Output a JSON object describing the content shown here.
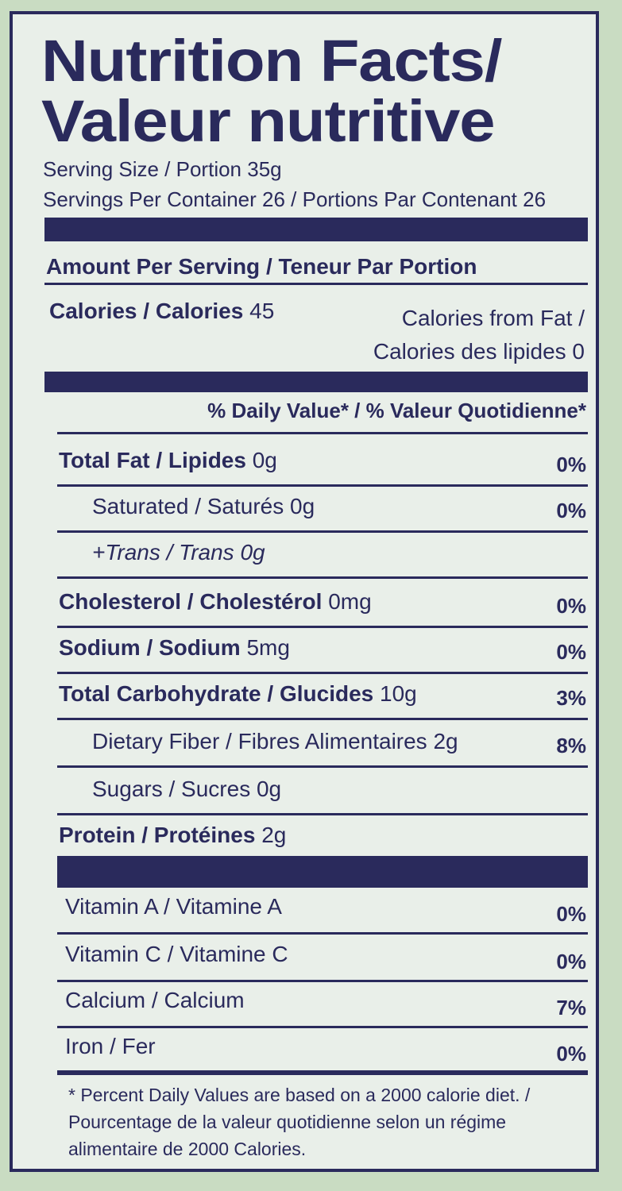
{
  "title_line1": "Nutrition Facts/",
  "title_line2": "Valeur nutritive",
  "serving_size": "Serving Size / Portion 35g",
  "servings_per_container": "Servings Per Container 26 / Portions Par Contenant 26",
  "amount_per_serving": "Amount Per Serving / Teneur Par Portion",
  "calories": {
    "label": "Calories / Calories",
    "value": "45"
  },
  "calories_from_fat": {
    "line1": "Calories from Fat /",
    "line2": "Calories des lipides 0"
  },
  "daily_value_header": "% Daily Value* / % Valeur Quotidienne*",
  "nutrients": [
    {
      "label": "Total Fat / Lipides",
      "amount": "0g",
      "pct": "0%",
      "bold": true,
      "indent": false
    },
    {
      "label": "Saturated / Saturés",
      "amount": "0g",
      "pct": "0%",
      "bold": false,
      "indent": true
    },
    {
      "label": "+Trans / Trans",
      "amount": "0g",
      "pct": "",
      "bold": false,
      "indent": true,
      "italic": true
    },
    {
      "label": "Cholesterol / Cholestérol",
      "amount": "0mg",
      "pct": "0%",
      "bold": true,
      "indent": false
    },
    {
      "label": "Sodium / Sodium",
      "amount": "5mg",
      "pct": "0%",
      "bold": true,
      "indent": false
    },
    {
      "label": "Total Carbohydrate / Glucides",
      "amount": "10g",
      "pct": "3%",
      "bold": true,
      "indent": false
    },
    {
      "label": "Dietary Fiber / Fibres Alimentaires",
      "amount": "2g",
      "pct": "8%",
      "bold": false,
      "indent": true
    },
    {
      "label": "Sugars / Sucres",
      "amount": "0g",
      "pct": "",
      "bold": false,
      "indent": true
    },
    {
      "label": "Protein / Protéines",
      "amount": "2g",
      "pct": "",
      "bold": true,
      "indent": false
    }
  ],
  "vitamins": [
    {
      "label": "Vitamin A / Vitamine A",
      "pct": "0%"
    },
    {
      "label": "Vitamin C / Vitamine C",
      "pct": "0%"
    },
    {
      "label": "Calcium / Calcium",
      "pct": "7%"
    },
    {
      "label": "Iron / Fer",
      "pct": "0%"
    }
  ],
  "footnote": [
    "* Percent Daily Values are based on a 2000 calorie diet. /",
    "Pourcentage de la valeur quotidienne selon un régime",
    "alimentaire de 2000 Calories."
  ],
  "colors": {
    "ink": "#2a2a5c",
    "label_bg": "#e9efe9",
    "package_bg": "#c9dcc2"
  }
}
